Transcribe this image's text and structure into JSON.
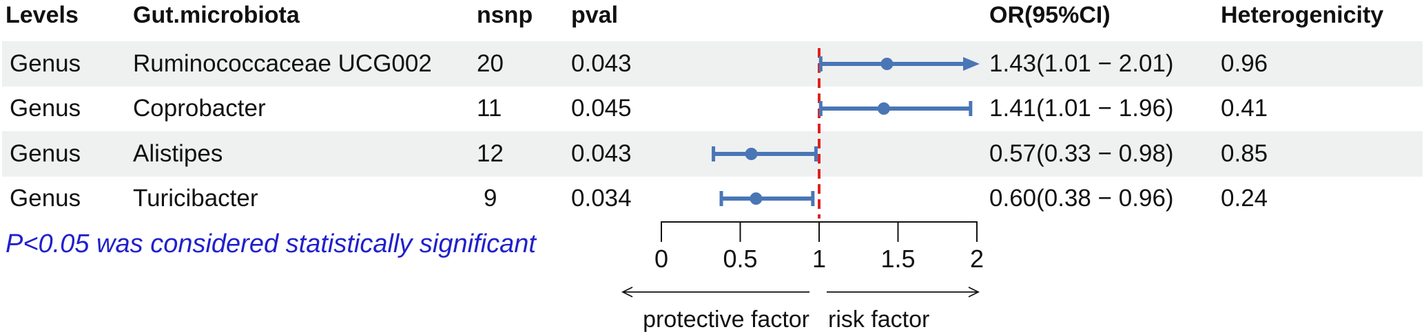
{
  "columns": {
    "levels": "Levels",
    "microbiota": "Gut.microbiota",
    "nsnp": "nsnp",
    "pval": "pval",
    "or": "OR(95%CI)",
    "het": "Heterogenicity"
  },
  "rows": [
    {
      "level": "Genus",
      "microbiota": "Ruminococcaceae UCG002",
      "nsnp": "20",
      "pval": "0.043",
      "or_ci": "1.43(1.01 − 2.01)",
      "het": "0.96"
    },
    {
      "level": "Genus",
      "microbiota": "Coprobacter",
      "nsnp": "11",
      "pval": "0.045",
      "or_ci": "1.41(1.01 − 1.96)",
      "het": "0.41"
    },
    {
      "level": "Genus",
      "microbiota": "Alistipes",
      "nsnp": "12",
      "pval": "0.043",
      "or_ci": "0.57(0.33 − 0.98)",
      "het": "0.85"
    },
    {
      "level": "Genus",
      "microbiota": "Turicibacter",
      "nsnp": "9",
      "pval": "0.034",
      "or_ci": "0.60(0.38 − 0.96)",
      "het": "0.24"
    }
  ],
  "footnote": "P<0.05 was considered statistically significant",
  "chart_data": {
    "type": "forest",
    "categories": [
      "Ruminococcaceae UCG002",
      "Coprobacter",
      "Alistipes",
      "Turicibacter"
    ],
    "estimates": [
      1.43,
      1.41,
      0.57,
      0.6
    ],
    "lower": [
      1.01,
      1.01,
      0.33,
      0.38
    ],
    "upper": [
      2.01,
      1.96,
      0.98,
      0.96
    ],
    "xlim": [
      0,
      2
    ],
    "ticks": [
      0,
      0.5,
      1,
      1.5,
      2
    ],
    "tick_labels": [
      "0",
      "0.5",
      "1",
      "1.5",
      "2"
    ],
    "reference_line": 1,
    "left_label": "protective factor",
    "right_label": "risk factor",
    "point_color": "#4a76b5",
    "ref_color": "#e02020"
  }
}
